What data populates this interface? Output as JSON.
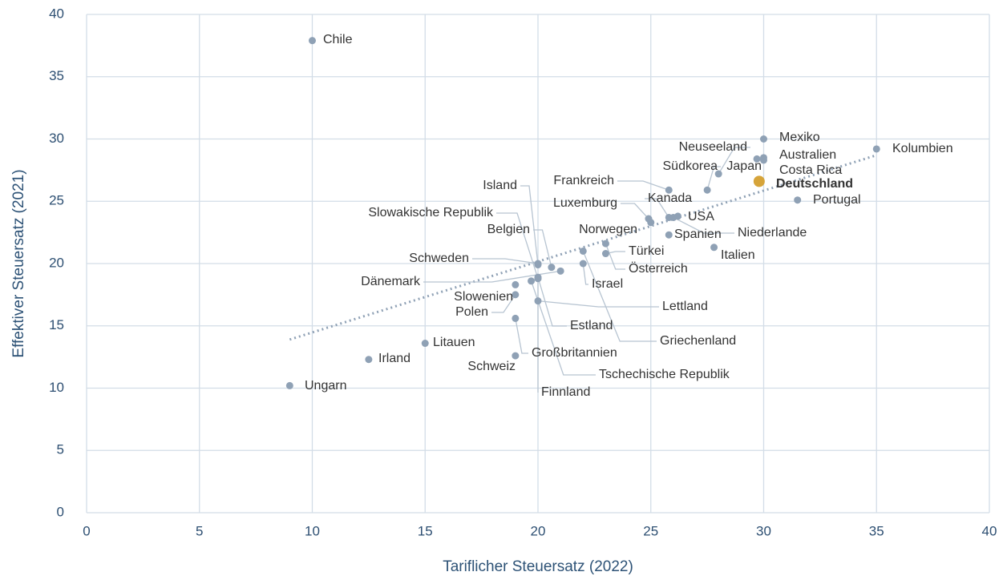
{
  "chart_data": {
    "type": "scatter",
    "xlabel": "Tariflicher Steuersatz (2022)",
    "ylabel": "Effektiver Steuersatz (2021)",
    "xlim": [
      0,
      40
    ],
    "ylim": [
      0,
      40
    ],
    "xticks": [
      0,
      5,
      10,
      15,
      20,
      25,
      30,
      35,
      40
    ],
    "yticks": [
      0,
      5,
      10,
      15,
      20,
      25,
      30,
      35,
      40
    ],
    "grid": true,
    "series": [
      {
        "color": "#8fa1b5",
        "font_weight": "normal",
        "labels": [
          "Chile",
          "Ungarn",
          "Irland",
          "Litauen",
          "Mexiko",
          "Australien",
          "Costa Rica",
          "Neuseeland",
          "Japan",
          "Südkorea",
          "Frankreich",
          "Kolumbien",
          "Portugal",
          "Kanada",
          "USA",
          "Luxemburg",
          "Norwegen",
          "Spanien",
          "Niederlande",
          "Italien",
          "Türkei",
          "Österreich",
          "Israel",
          "Island",
          "Slowakische Republik",
          "Belgien",
          "Schweden",
          "Dänemark",
          "Slowenien",
          "Polen",
          "Lettland",
          "Estland",
          "Griechenland",
          "Großbritannien",
          "Schweiz",
          "Tschechische Republik",
          "Finnland"
        ],
        "x": [
          10,
          9,
          12.5,
          15,
          30,
          30,
          30,
          28,
          29.7,
          27.5,
          25.8,
          35,
          31.5,
          25.8,
          26.2,
          24.9,
          25,
          25.8,
          26,
          27.8,
          23,
          23,
          22,
          20,
          20,
          20.6,
          20,
          21,
          19,
          19,
          20,
          20,
          22,
          19,
          19,
          19.7,
          20
        ],
        "y": [
          37.9,
          10.2,
          12.3,
          13.6,
          30,
          28.5,
          28.3,
          27.2,
          28.4,
          25.9,
          25.9,
          29.2,
          25.1,
          23.7,
          23.8,
          23.6,
          23.3,
          22.3,
          23.7,
          21.3,
          20.8,
          21.6,
          20,
          19.9,
          18.8,
          19.7,
          20,
          19.4,
          18.3,
          17.5,
          17,
          18.9,
          21,
          15.6,
          12.6,
          18.6,
          18.8
        ]
      },
      {
        "color": "#d6a43a",
        "font_weight": "bold",
        "labels": [
          "Deutschland"
        ],
        "x": [
          29.8
        ],
        "y": [
          26.6
        ]
      }
    ],
    "trendline": {
      "color": "#8fa1b5",
      "x": [
        9,
        35
      ],
      "y": [
        13.9,
        28.7
      ]
    }
  }
}
